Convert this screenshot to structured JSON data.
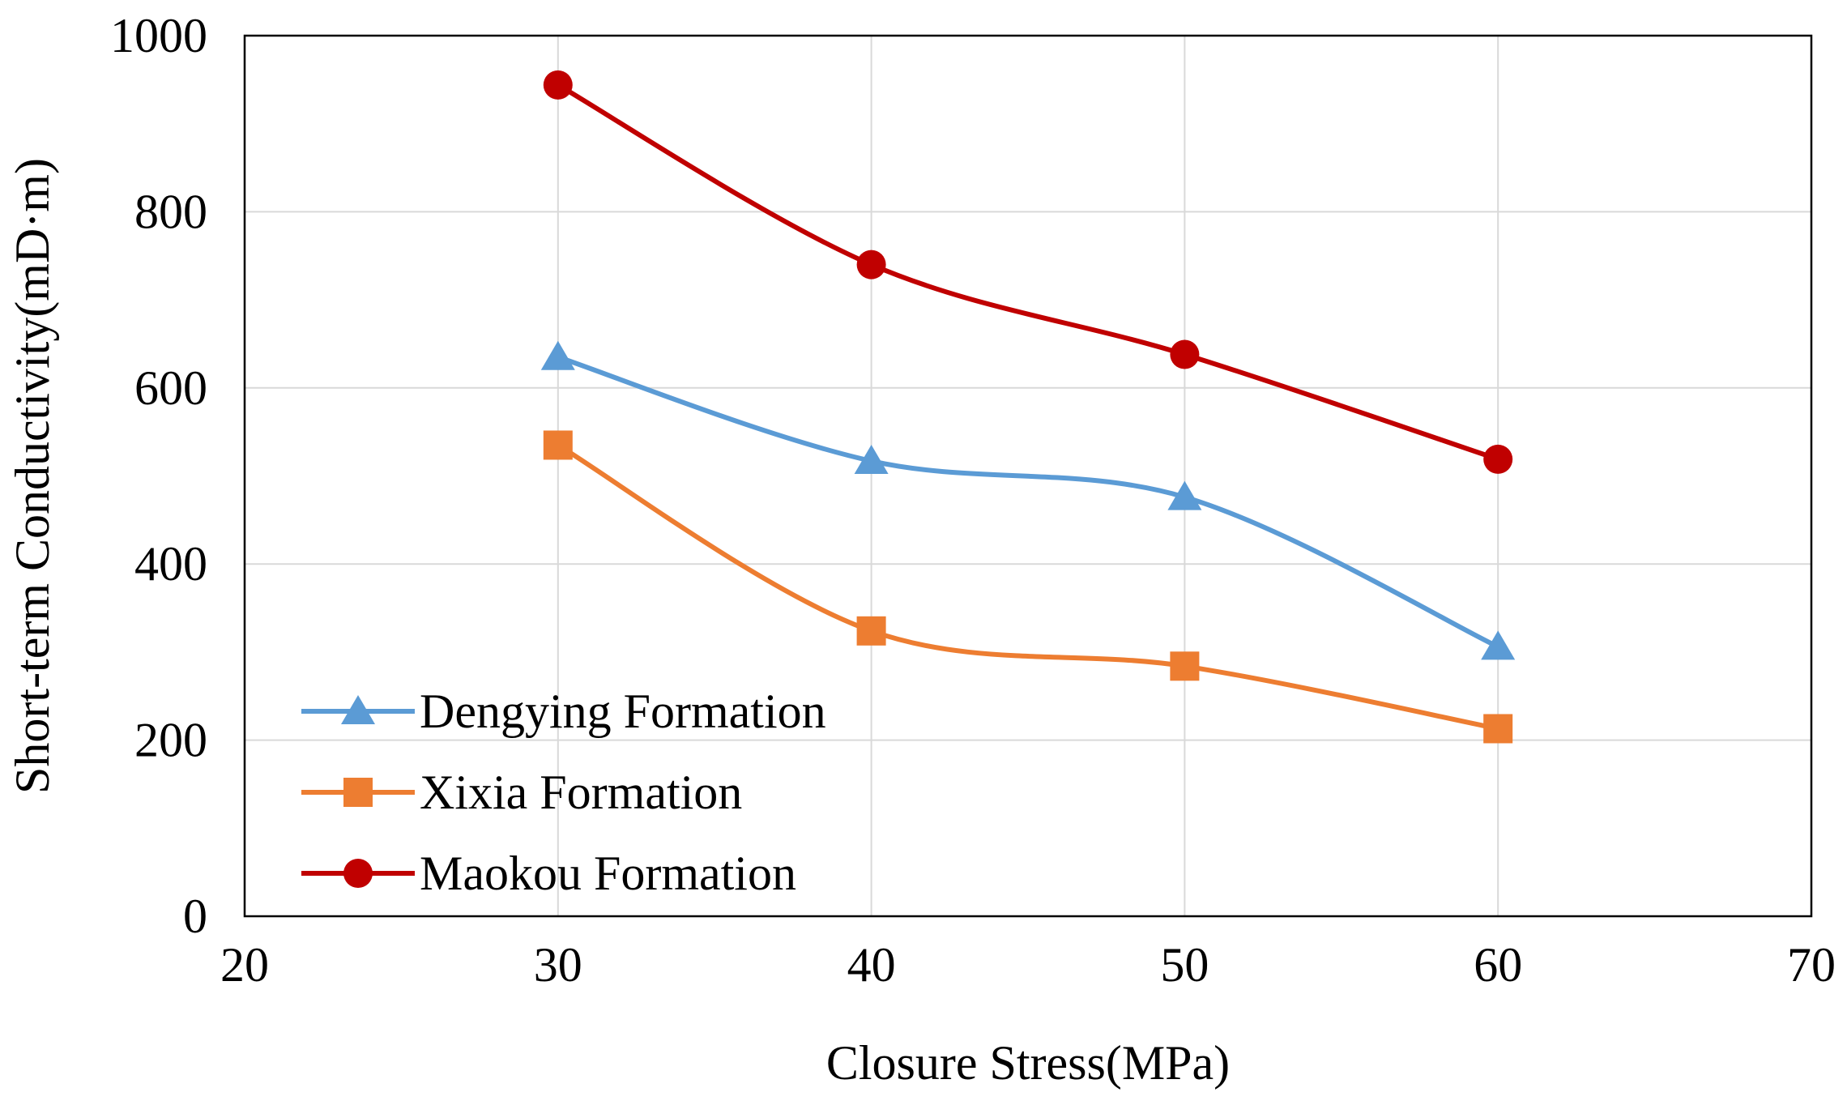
{
  "chart_data": {
    "type": "line",
    "title": "",
    "xlabel": "Closure Stress(MPa)",
    "ylabel": "Short-term Conductivity(mD·m)",
    "xlim": [
      20,
      70
    ],
    "ylim": [
      0,
      1000
    ],
    "x_ticks": [
      20,
      30,
      40,
      50,
      60,
      70
    ],
    "y_ticks": [
      0,
      200,
      400,
      600,
      800,
      1000
    ],
    "grid": true,
    "smooth": true,
    "legend_position": "bottom-left",
    "series": [
      {
        "name": "Dengying Formation",
        "marker": "triangle",
        "color": "#5b9bd5",
        "x": [
          30,
          40,
          50,
          60
        ],
        "y": [
          635,
          517,
          476,
          306
        ]
      },
      {
        "name": "Xixia Formation",
        "marker": "square",
        "color": "#ed7d31",
        "x": [
          30,
          40,
          50,
          60
        ],
        "y": [
          535,
          324,
          284,
          213
        ]
      },
      {
        "name": "Maokou Formation",
        "marker": "circle",
        "color": "#c00000",
        "x": [
          30,
          40,
          50,
          60
        ],
        "y": [
          944,
          740,
          638,
          519
        ]
      }
    ]
  }
}
